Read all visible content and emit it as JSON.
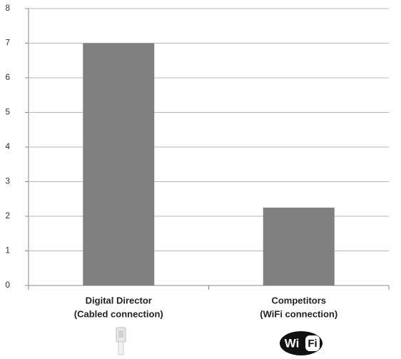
{
  "chart_data": {
    "type": "bar",
    "categories": [
      [
        "Digital Director",
        "(Cabled connection)"
      ],
      [
        "Competitors",
        "(WiFi connection)"
      ]
    ],
    "values": [
      7,
      2.25
    ],
    "color": "#808080",
    "ylim": [
      0,
      8
    ],
    "yticks": [
      0,
      1,
      2,
      3,
      4,
      5,
      6,
      7,
      8
    ],
    "grid": true
  },
  "icons": {
    "wifi_logo": [
      "Wi",
      "Fi"
    ]
  }
}
